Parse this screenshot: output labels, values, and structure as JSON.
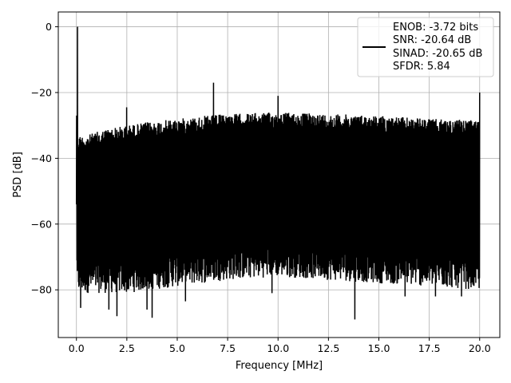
{
  "chart_data": {
    "type": "line",
    "title": "",
    "xlabel": "Frequency [MHz]",
    "ylabel": "PSD [dB]",
    "xlim": [
      -0.9,
      21.0
    ],
    "ylim": [
      -94.5,
      4.5
    ],
    "grid": true,
    "x_ticks": [
      0.0,
      2.5,
      5.0,
      7.5,
      10.0,
      12.5,
      15.0,
      17.5,
      20.0
    ],
    "x_tick_labels": [
      "0.0",
      "2.5",
      "5.0",
      "7.5",
      "10.0",
      "12.5",
      "15.0",
      "17.5",
      "20.0"
    ],
    "y_ticks": [
      0,
      -20,
      -40,
      -60,
      -80
    ],
    "y_tick_labels": [
      "0",
      "−20",
      "−40",
      "−60",
      "−80"
    ],
    "legend_position": "top-right",
    "series": [
      {
        "name": "",
        "color": "#000000",
        "x_range": [
          0.0,
          20.0
        ],
        "upper_envelope": [
          [
            0.0,
            0
          ],
          [
            0.1,
            -33
          ],
          [
            0.5,
            -33
          ],
          [
            1.0,
            -32
          ],
          [
            1.5,
            -31
          ],
          [
            2.5,
            -30
          ],
          [
            3.5,
            -29
          ],
          [
            5.0,
            -28
          ],
          [
            6.5,
            -27
          ],
          [
            7.5,
            -26.5
          ],
          [
            10.0,
            -26
          ],
          [
            12.5,
            -26.5
          ],
          [
            15.0,
            -27
          ],
          [
            17.5,
            -28
          ],
          [
            20.0,
            -28.5
          ]
        ],
        "lower_envelope": [
          [
            0.0,
            -78
          ],
          [
            2.5,
            -78
          ],
          [
            5.0,
            -76
          ],
          [
            7.5,
            -74
          ],
          [
            10.0,
            -73
          ],
          [
            12.5,
            -74
          ],
          [
            15.0,
            -75
          ],
          [
            17.5,
            -76
          ],
          [
            20.0,
            -77
          ]
        ],
        "spurs": [
          [
            0.05,
            0.0
          ],
          [
            2.5,
            -24.5
          ],
          [
            6.8,
            -17.0
          ],
          [
            10.0,
            -21.0
          ],
          [
            20.0,
            -20.0
          ]
        ],
        "deep_nulls": [
          [
            0.2,
            -85.5
          ],
          [
            1.6,
            -86
          ],
          [
            2.0,
            -88
          ],
          [
            3.5,
            -86
          ],
          [
            3.75,
            -88.5
          ],
          [
            5.4,
            -83.5
          ],
          [
            9.7,
            -81
          ],
          [
            13.8,
            -89
          ],
          [
            16.3,
            -82
          ],
          [
            17.8,
            -82
          ],
          [
            19.1,
            -82
          ]
        ]
      }
    ],
    "legend_entries": [
      {
        "label": "ENOB: -3.72 bits"
      },
      {
        "label": "SNR: -20.64 dB"
      },
      {
        "label": "SINAD: -20.65 dB"
      },
      {
        "label": "SFDR: 5.84"
      }
    ]
  }
}
